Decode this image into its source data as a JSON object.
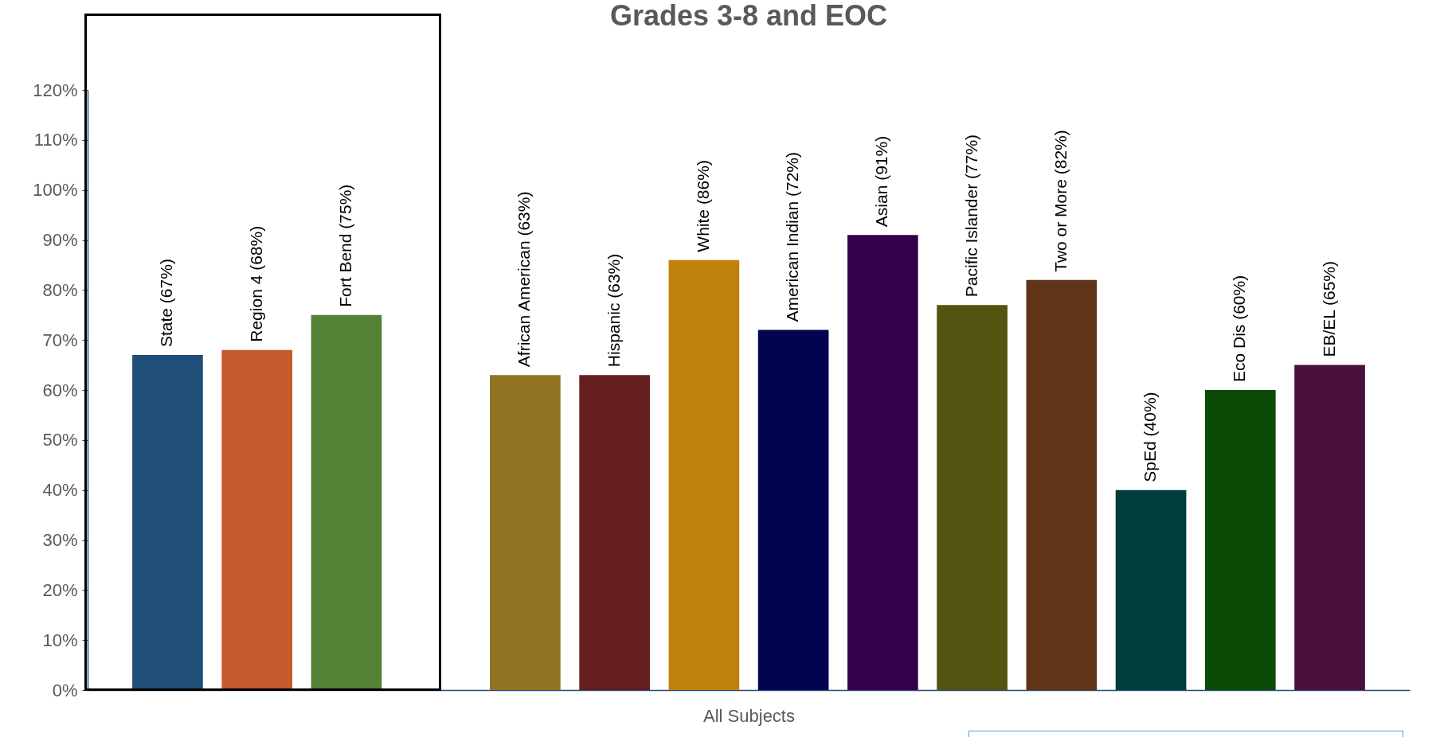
{
  "chart_data": {
    "type": "bar",
    "title": "Grades 3-8 and EOC",
    "xlabel": "All Subjects",
    "categories": [
      null,
      null,
      null,
      null,
      null,
      null,
      null,
      null,
      null,
      null,
      null,
      null,
      null,
      null
    ],
    "values": [
      67,
      68,
      75,
      null,
      63,
      63,
      86,
      72,
      91,
      77,
      82,
      40,
      60,
      65
    ],
    "value_labels": [
      "State (67%)",
      "Region 4 (68%)",
      "Fort Bend (75%)",
      null,
      "African American (63%)",
      "Hispanic (63%)",
      "White (86%)",
      "American Indian (72%)",
      "Asian (91%)",
      "Pacific Islander (77%)",
      "Two or More (82%)",
      "SpEd (40%)",
      "Eco Dis (60%)",
      "EB/EL (65%)"
    ],
    "colors": [
      "#1f4e79",
      "#c55a2d",
      "#538135",
      "#ffffff",
      "#8f7222",
      "#641e1e",
      "#bf800c",
      "#03034f",
      "#330049",
      "#525410",
      "#5f3419",
      "#003d3d",
      "#0b4a06",
      "#4a103e"
    ],
    "ylim": [
      0,
      120
    ],
    "yticks": [
      {
        "value": 0,
        "label": "0%"
      },
      {
        "value": 10,
        "label": "10%"
      },
      {
        "value": 20,
        "label": "20%"
      },
      {
        "value": 30,
        "label": "30%"
      },
      {
        "value": 40,
        "label": "40%"
      },
      {
        "value": 50,
        "label": "50%"
      },
      {
        "value": 60,
        "label": "60%"
      },
      {
        "value": 70,
        "label": "70%"
      },
      {
        "value": 80,
        "label": "80%"
      },
      {
        "value": 90,
        "label": "90%"
      },
      {
        "value": 100,
        "label": "100%"
      },
      {
        "value": 110,
        "label": "110%"
      },
      {
        "value": 120,
        "label": "120%"
      }
    ],
    "tick_labels": "y",
    "grid": false,
    "legend": false
  }
}
